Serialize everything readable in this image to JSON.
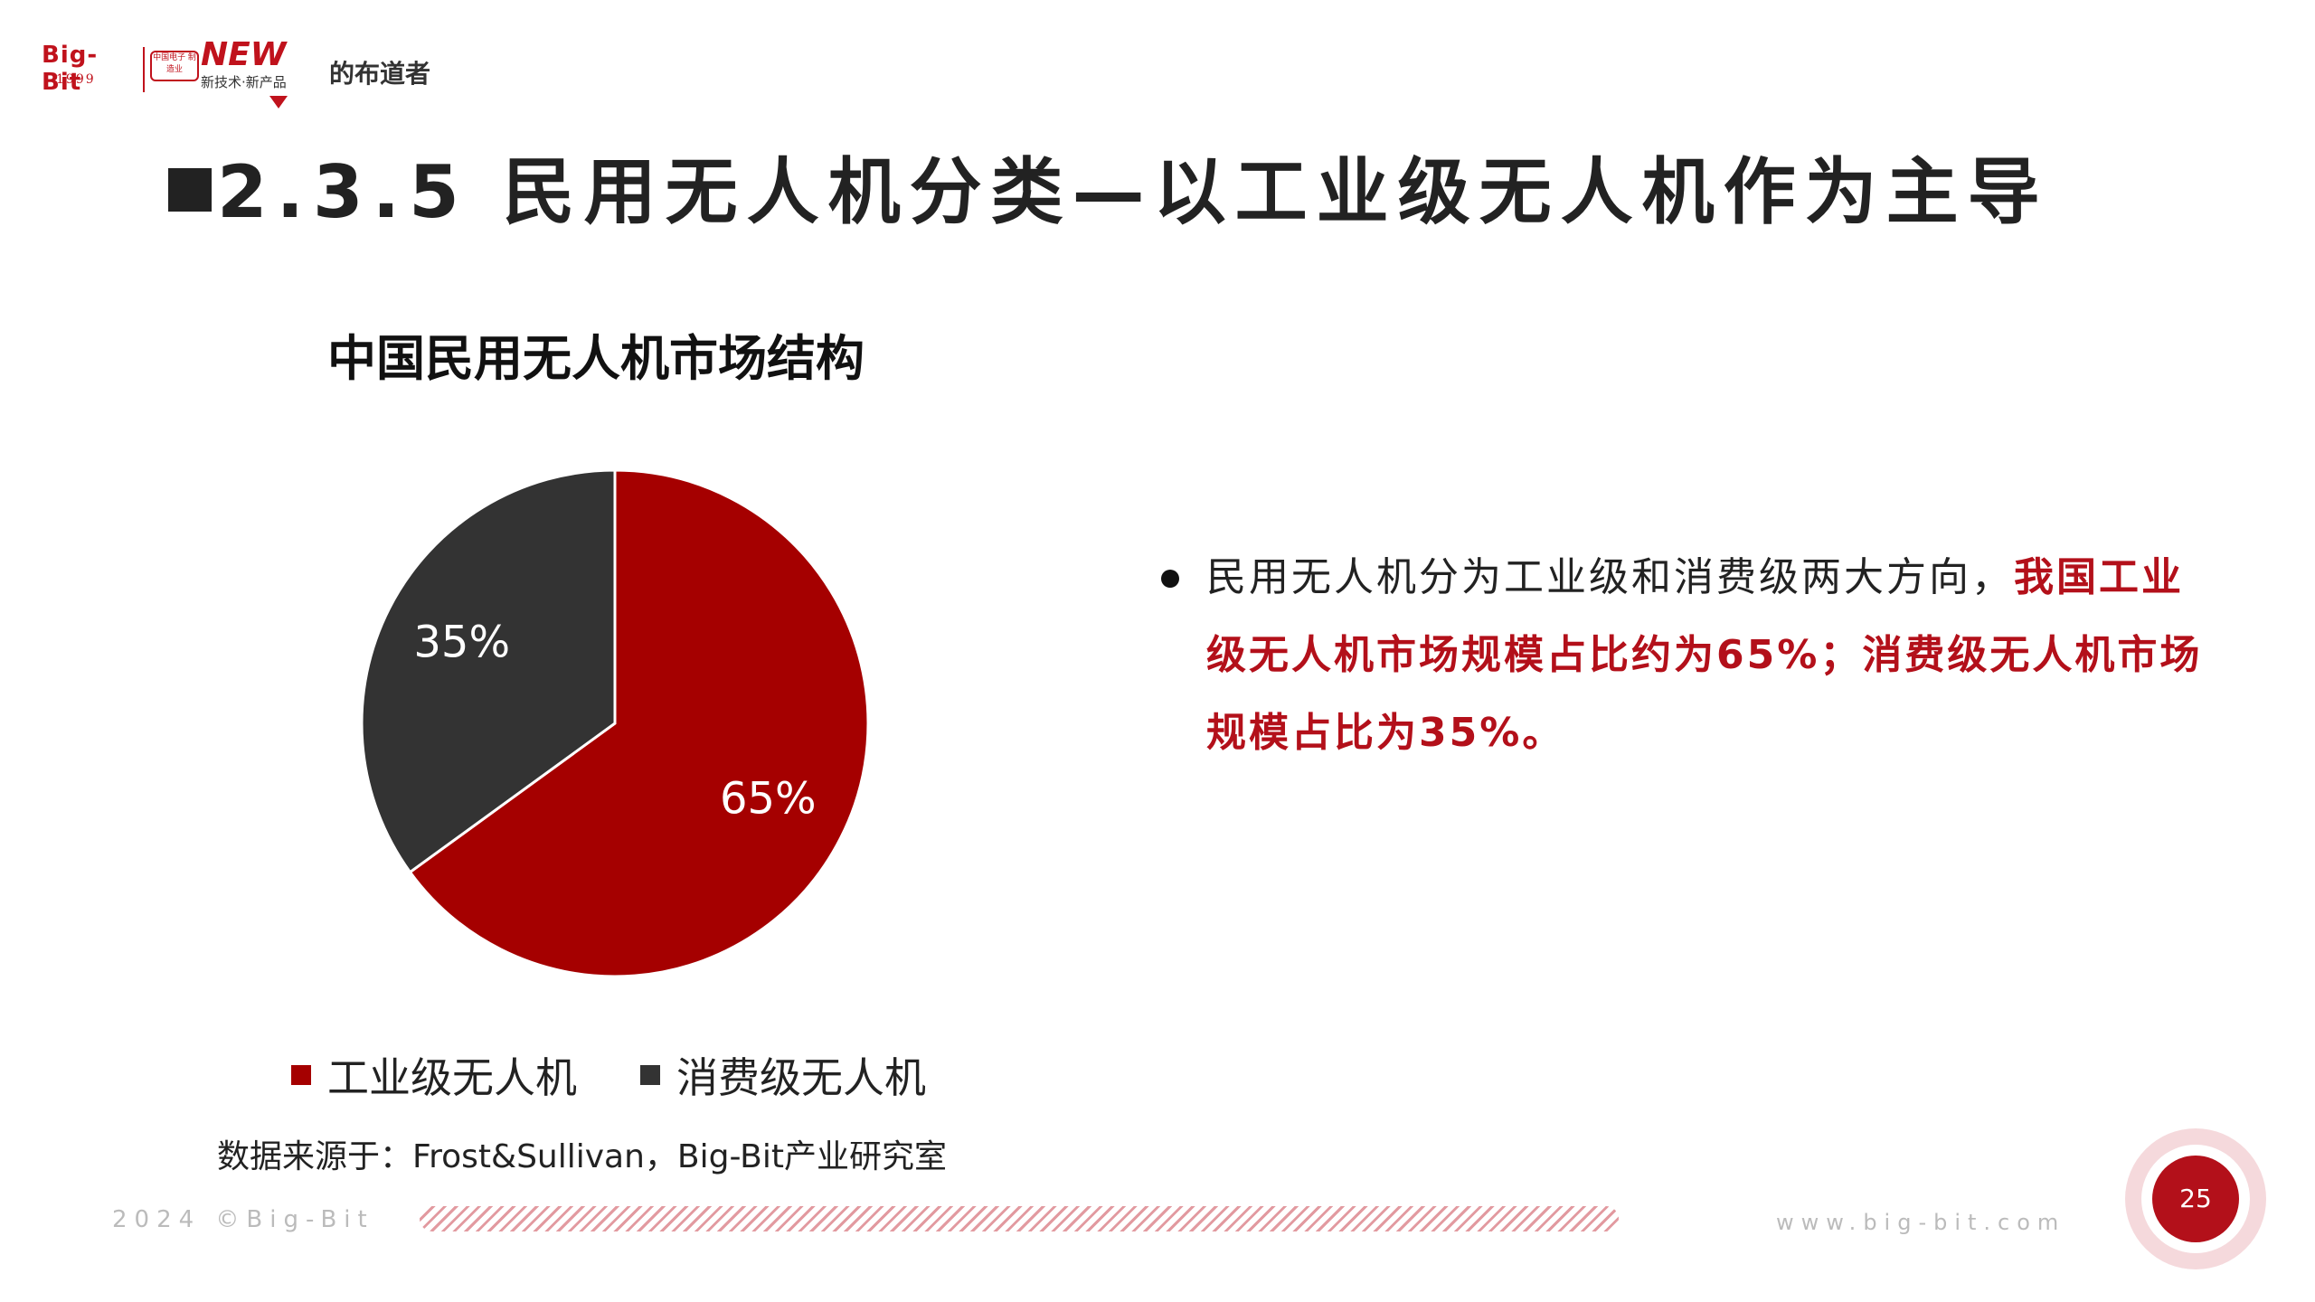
{
  "header": {
    "logo_bigbit": "Big-Bit",
    "logo_year": "1999",
    "logo_stamp": "中国电子 制造业",
    "logo_new": "NEW",
    "logo_sub": "新技术·新产品",
    "logo_brand": "的布道者"
  },
  "page_title": "2.3.5 民用无人机分类—以工业级无人机作为主导",
  "chart_data": {
    "type": "pie",
    "title": "中国民用无人机市场结构",
    "categories": [
      "工业级无人机",
      "消费级无人机"
    ],
    "values": [
      65,
      35
    ],
    "labels": [
      "65%",
      "35%"
    ],
    "colors": [
      "#a50000",
      "#333333"
    ],
    "legend": "bottom"
  },
  "source": "数据来源于：Frost&Sullivan，Big-Bit产业研究室",
  "bullet": {
    "normal": "民用无人机分为工业级和消费级两大方向，",
    "highlight": "我国工业级无人机市场规模占比约为65%；消费级无人机市场规模占比为35%。"
  },
  "footer": {
    "year": "2024 ©Big-Bit",
    "url": "www.big-bit.com",
    "page_number": "25"
  }
}
